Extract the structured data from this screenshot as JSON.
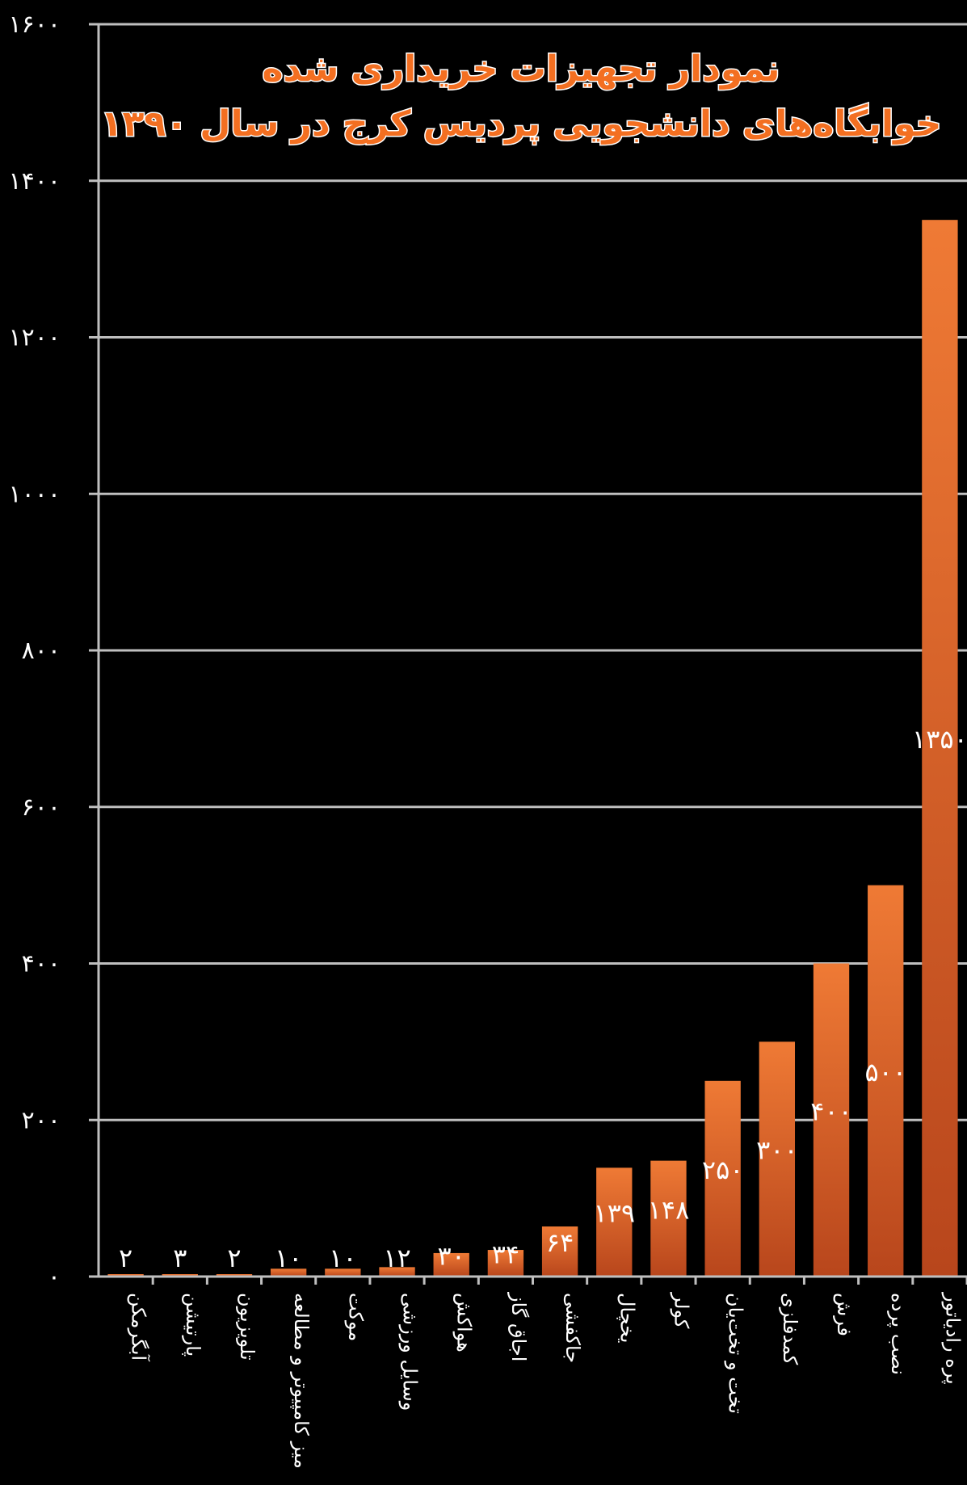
{
  "chart_data": {
    "type": "bar",
    "title_lines": [
      "نمودار تجهیزات خریداری شده",
      "خوابگاه‌های دانشجویی پردیس کرج  در سال ۱۳۹۰"
    ],
    "categories": [
      "آبگرمکن",
      "پارتیشن",
      "تلویزیون",
      "میز کامپیوتر و مطالعه",
      "موکت",
      "وسایل ورزشی",
      "هواکش",
      "اجاق گاز",
      "جاکفشی",
      "یخچال",
      "کولر",
      "تخت و تخت‌یان",
      "کمدفلزی",
      "فرش",
      "نصب پرده",
      "پره رادیاتور"
    ],
    "values": [
      2,
      3,
      2,
      10,
      10,
      12,
      30,
      34,
      64,
      139,
      148,
      250,
      300,
      400,
      500,
      1350
    ],
    "value_labels": [
      "۲",
      "۳",
      "۲",
      "۱۰",
      "۱۰",
      "۱۲",
      "۳۰",
      "۳۴",
      "۶۴",
      "۱۳۹",
      "۱۴۸",
      "۲۵۰",
      "۳۰۰",
      "۴۰۰",
      "۵۰۰",
      "۱۳۵۰"
    ],
    "yticks": [
      0,
      200,
      400,
      600,
      800,
      1000,
      1200,
      1400,
      1600
    ],
    "ytick_labels": [
      "۰",
      "۲۰۰",
      "۴۰۰",
      "۶۰۰",
      "۸۰۰",
      "۱۰۰۰",
      "۱۲۰۰",
      "۱۴۰۰",
      "۱۶۰۰"
    ],
    "ylim": [
      0,
      1600
    ],
    "grid": true,
    "colors": {
      "bar_top": "#ef7a35",
      "bar_bottom": "#b8461c",
      "grid": "#bfbfbf",
      "title": "#f36f21",
      "background": "#000000"
    }
  }
}
